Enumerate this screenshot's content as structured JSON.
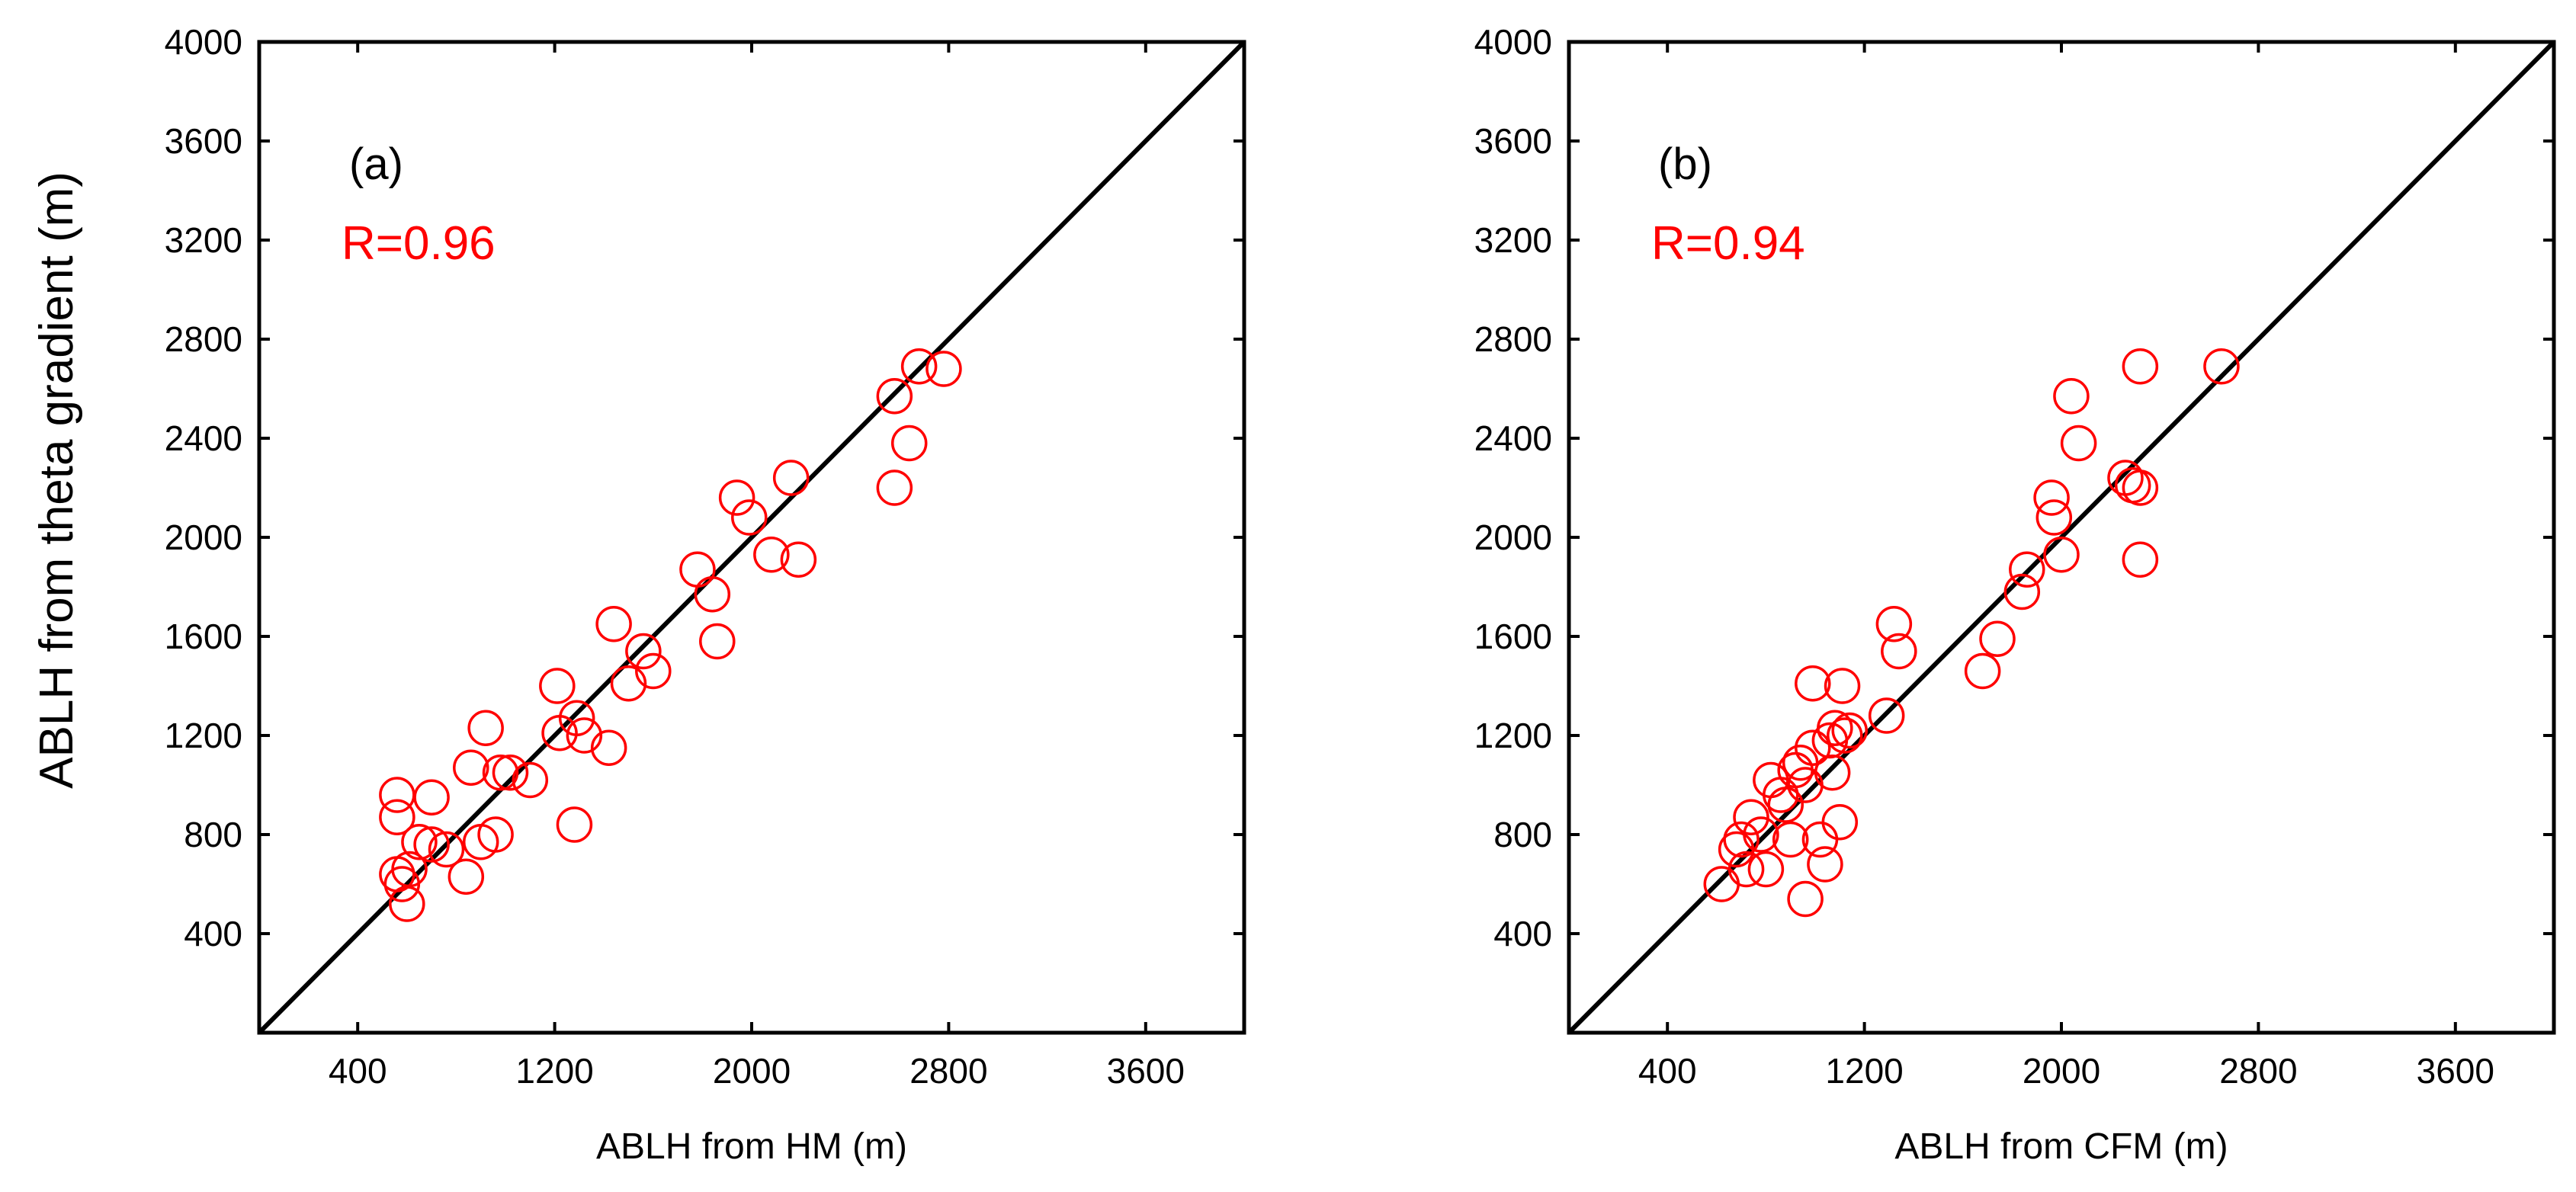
{
  "figure": {
    "ylabel": "ABLH from theta gradient (m)"
  },
  "chart_data": [
    {
      "type": "scatter",
      "panel_label": "(a)",
      "annotation": "R=0.96",
      "annotation_color": "#ff0000",
      "marker_color": "#ff0000",
      "line_color": "#000000",
      "xlabel": "ABLH from HM (m)",
      "ylabel": "ABLH from theta gradient (m)",
      "xlim": [
        0,
        4000
      ],
      "ylim": [
        0,
        4000
      ],
      "xticks": [
        400,
        1200,
        2000,
        2800,
        3600
      ],
      "yticks": [
        400,
        800,
        1200,
        1600,
        2000,
        2400,
        2800,
        3200,
        3600,
        4000
      ],
      "reference_line": "1:1",
      "points": [
        [
          560,
          960
        ],
        [
          560,
          870
        ],
        [
          560,
          640
        ],
        [
          580,
          600
        ],
        [
          600,
          520
        ],
        [
          610,
          660
        ],
        [
          650,
          770
        ],
        [
          700,
          950
        ],
        [
          700,
          760
        ],
        [
          760,
          740
        ],
        [
          840,
          630
        ],
        [
          860,
          1070
        ],
        [
          900,
          770
        ],
        [
          920,
          1230
        ],
        [
          960,
          800
        ],
        [
          980,
          1050
        ],
        [
          1020,
          1050
        ],
        [
          1100,
          1020
        ],
        [
          1210,
          1400
        ],
        [
          1220,
          1210
        ],
        [
          1290,
          1270
        ],
        [
          1280,
          840
        ],
        [
          1320,
          1200
        ],
        [
          1420,
          1150
        ],
        [
          1440,
          1650
        ],
        [
          1500,
          1410
        ],
        [
          1560,
          1540
        ],
        [
          1600,
          1460
        ],
        [
          1780,
          1870
        ],
        [
          1840,
          1770
        ],
        [
          1860,
          1580
        ],
        [
          1940,
          2160
        ],
        [
          1990,
          2080
        ],
        [
          2080,
          1930
        ],
        [
          2160,
          2240
        ],
        [
          2190,
          1910
        ],
        [
          2580,
          2570
        ],
        [
          2580,
          2200
        ],
        [
          2640,
          2380
        ],
        [
          2680,
          2690
        ],
        [
          2780,
          2680
        ]
      ]
    },
    {
      "type": "scatter",
      "panel_label": "(b)",
      "annotation": "R=0.94",
      "annotation_color": "#ff0000",
      "marker_color": "#ff0000",
      "line_color": "#000000",
      "xlabel": "ABLH from CFM (m)",
      "ylabel": "ABLH from theta gradient (m)",
      "xlim": [
        0,
        4000
      ],
      "ylim": [
        0,
        4000
      ],
      "xticks": [
        400,
        1200,
        2000,
        2800,
        3600
      ],
      "yticks": [
        400,
        800,
        1200,
        1600,
        2000,
        2400,
        2800,
        3200,
        3600,
        4000
      ],
      "reference_line": "1:1",
      "points": [
        [
          620,
          600
        ],
        [
          680,
          740
        ],
        [
          700,
          780
        ],
        [
          720,
          660
        ],
        [
          740,
          870
        ],
        [
          780,
          800
        ],
        [
          800,
          660
        ],
        [
          820,
          1020
        ],
        [
          860,
          960
        ],
        [
          880,
          920
        ],
        [
          900,
          780
        ],
        [
          920,
          1060
        ],
        [
          940,
          1090
        ],
        [
          960,
          540
        ],
        [
          960,
          1000
        ],
        [
          990,
          1410
        ],
        [
          990,
          1150
        ],
        [
          1020,
          780
        ],
        [
          1040,
          680
        ],
        [
          1060,
          1180
        ],
        [
          1070,
          1050
        ],
        [
          1080,
          1230
        ],
        [
          1110,
          1400
        ],
        [
          1120,
          1200
        ],
        [
          1140,
          1220
        ],
        [
          1100,
          850
        ],
        [
          1290,
          1280
        ],
        [
          1320,
          1650
        ],
        [
          1340,
          1540
        ],
        [
          1680,
          1460
        ],
        [
          1740,
          1590
        ],
        [
          1840,
          1780
        ],
        [
          1860,
          1870
        ],
        [
          1960,
          2160
        ],
        [
          1970,
          2080
        ],
        [
          2000,
          1930
        ],
        [
          2040,
          2570
        ],
        [
          2070,
          2380
        ],
        [
          2260,
          2240
        ],
        [
          2290,
          2210
        ],
        [
          2320,
          2690
        ],
        [
          2320,
          2200
        ],
        [
          2320,
          1910
        ],
        [
          2650,
          2690
        ]
      ]
    }
  ]
}
